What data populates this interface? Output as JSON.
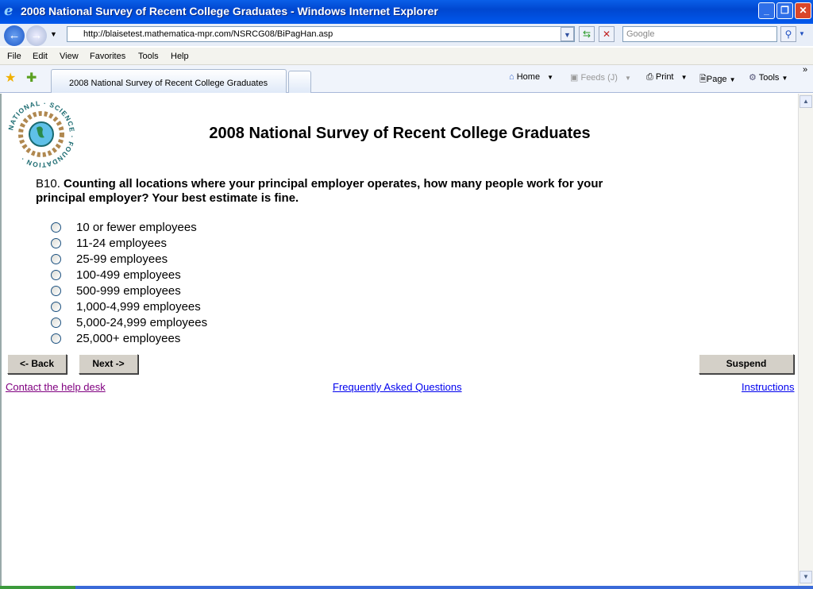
{
  "window": {
    "title": "2008 National Survey of Recent College Graduates - Windows Internet Explorer"
  },
  "address": {
    "url": "http://blaisetest.mathematica-mpr.com/NSRCG08/BiPagHan.asp",
    "search_placeholder": "Google"
  },
  "menu": [
    "File",
    "Edit",
    "View",
    "Favorites",
    "Tools",
    "Help"
  ],
  "tab": {
    "label": "2008 National Survey of Recent College Graduates"
  },
  "toolbar": {
    "home": "Home",
    "feeds": "Feeds (J)",
    "print": "Print",
    "page": "Page",
    "tools": "Tools"
  },
  "logo": {
    "text": "NATIONAL · SCIENCE · FOUNDATION"
  },
  "page": {
    "title": "2008 National Survey of Recent College Graduates",
    "question_id": "B10.",
    "question": "Counting all locations where your principal employer operates, how many people work for your principal employer? Your best estimate is fine.",
    "options": [
      "10 or fewer employees",
      "11-24 employees",
      "25-99 employees",
      "100-499 employees",
      "500-999 employees",
      "1,000-4,999 employees",
      "5,000-24,999 employees",
      "25,000+ employees"
    ],
    "back": "<- Back",
    "next": "Next ->",
    "suspend": "Suspend",
    "links": {
      "help": "Contact the help desk",
      "faq": "Frequently Asked Questions",
      "instructions": "Instructions"
    }
  }
}
